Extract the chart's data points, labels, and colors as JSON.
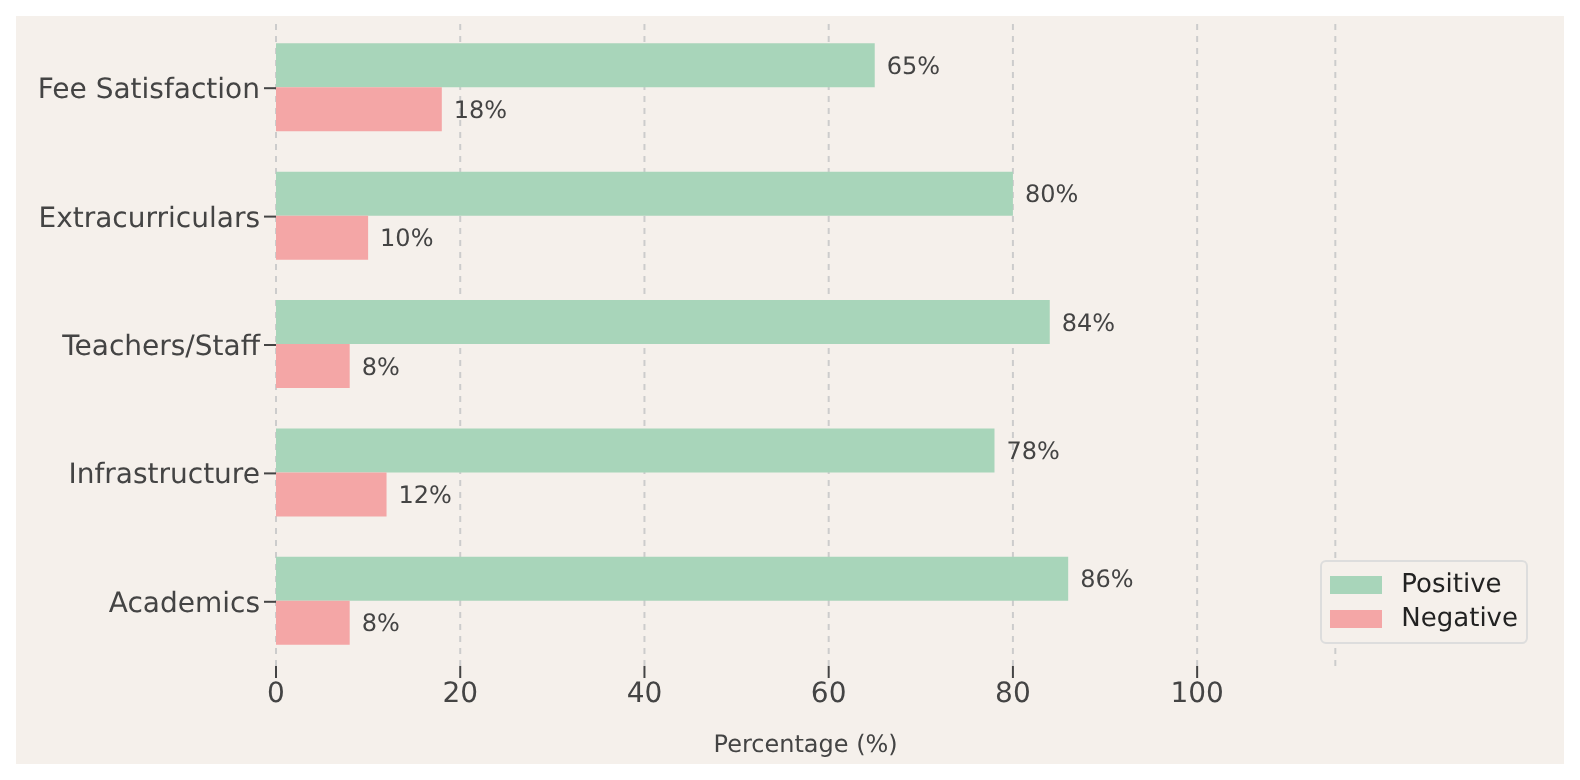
{
  "chart_data": {
    "type": "bar",
    "orientation": "horizontal",
    "xlabel": "Percentage (%)",
    "categories": [
      "Fee Satisfaction",
      "Extracurriculars",
      "Teachers/Staff",
      "Infrastructure",
      "Academics"
    ],
    "series": [
      {
        "name": "Positive",
        "color": "#a8d5ba",
        "values": [
          65,
          80,
          84,
          78,
          86
        ],
        "value_labels": [
          "65%",
          "80%",
          "84%",
          "78%",
          "86%"
        ]
      },
      {
        "name": "Negative",
        "color": "#f4a6a6",
        "values": [
          18,
          10,
          8,
          12,
          8
        ],
        "value_labels": [
          "18%",
          "10%",
          "8%",
          "12%",
          "8%"
        ]
      }
    ],
    "xlim": [
      0,
      115
    ],
    "xticks": [
      0,
      20,
      40,
      60,
      80,
      100
    ],
    "grid": "x",
    "legend": "bottom right"
  }
}
